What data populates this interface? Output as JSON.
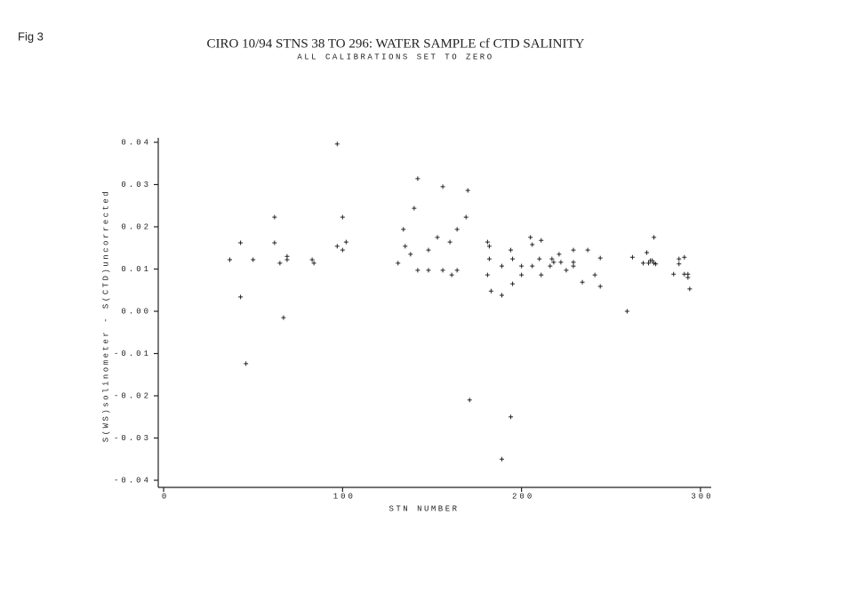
{
  "figure_label": "Fig 3",
  "chart_data": {
    "type": "scatter",
    "title": "CIRO 10/94 STNS  38 TO 296: WATER SAMPLE cf CTD SALINITY",
    "subtitle": "ALL CALIBRATIONS SET TO ZERO",
    "x_label": "STN NUMBER",
    "y_label": "S(WS)solinometer - S(CTD)uncorrected",
    "color": "#222222",
    "xlim": [
      -3,
      306
    ],
    "xticks": [
      0,
      100,
      200,
      300
    ],
    "ylim": [
      -0.04,
      0.04
    ],
    "yticks": [
      -0.04,
      -0.03,
      -0.02,
      -0.01,
      {
        "value": 0,
        "label": "0.00"
      },
      0.01,
      0.02,
      0.03,
      0.04
    ],
    "x": [
      37,
      43,
      43,
      46,
      50,
      62,
      62,
      65,
      67,
      69,
      69,
      83,
      84,
      97,
      97,
      100,
      100,
      102,
      131,
      134,
      135,
      138,
      140,
      142,
      142,
      148,
      148,
      153,
      156,
      156,
      160,
      161,
      164,
      164,
      169,
      170,
      171,
      181,
      181,
      182,
      182,
      183,
      189,
      189,
      189,
      194,
      194,
      195,
      195,
      200,
      200,
      205,
      206,
      206,
      210,
      211,
      211,
      216,
      217,
      218,
      221,
      222,
      225,
      229,
      229,
      229,
      234,
      237,
      241,
      244,
      244,
      259,
      262,
      268,
      270,
      271,
      272,
      273,
      274,
      274,
      275,
      285,
      288,
      288,
      291,
      291,
      293,
      293,
      294
    ],
    "values": [
      0.0122,
      0.0162,
      0.0034,
      -0.0124,
      0.0122,
      0.0223,
      0.0162,
      0.0114,
      -0.0015,
      0.013,
      0.0122,
      0.0122,
      0.0114,
      0.0396,
      0.0154,
      0.0223,
      0.0145,
      0.0164,
      0.0114,
      0.0194,
      0.0154,
      0.0135,
      0.0244,
      0.0314,
      0.0097,
      0.0145,
      0.0097,
      0.0175,
      0.0295,
      0.0097,
      0.0164,
      0.0086,
      0.0194,
      0.0097,
      0.0223,
      0.0286,
      -0.021,
      0.0164,
      0.0086,
      0.0154,
      0.0124,
      0.0048,
      0.0107,
      -0.035,
      0.0038,
      -0.025,
      0.0145,
      0.0124,
      0.0065,
      0.0107,
      0.0086,
      0.0175,
      0.0107,
      0.0158,
      0.0124,
      0.0168,
      0.0086,
      0.0107,
      0.0124,
      0.0116,
      0.0135,
      0.0116,
      0.0097,
      0.0145,
      0.0116,
      0.0107,
      0.0069,
      0.0145,
      0.0086,
      0.0126,
      0.0059,
      0.0,
      0.0128,
      0.0114,
      0.0139,
      0.0114,
      0.012,
      0.012,
      0.0114,
      0.0175,
      0.0112,
      0.0088,
      0.0124,
      0.0112,
      0.0128,
      0.0088,
      0.0088,
      0.008,
      0.0053
    ]
  }
}
